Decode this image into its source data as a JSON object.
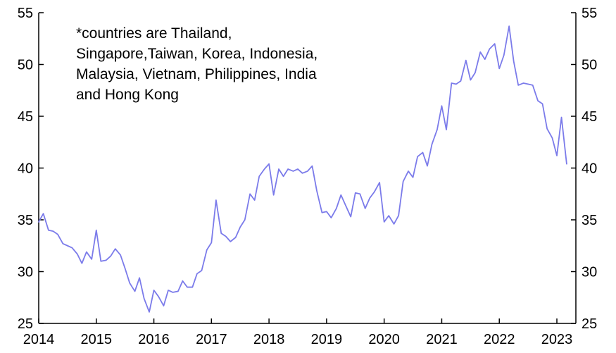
{
  "chart_data": {
    "type": "line",
    "title": "",
    "xlabel": "",
    "ylabel": "",
    "ylim": [
      25,
      55
    ],
    "xlim": [
      2014.0,
      2023.33
    ],
    "y_ticks": [
      25,
      30,
      35,
      40,
      45,
      50,
      55
    ],
    "x_ticks": [
      2014,
      2015,
      2016,
      2017,
      2018,
      2019,
      2020,
      2021,
      2022,
      2023
    ],
    "dual_y_axis": true,
    "grid": false,
    "line_color": "#7b7bea",
    "annotation": {
      "lines": [
        "*countries are Thailand,",
        "Singapore,Taiwan, Korea, Indonesia,",
        "Malaysia, Vietnam, Philippines, India",
        "and Hong Kong"
      ]
    },
    "series": [
      {
        "values": [
          [
            2014.0,
            34.8
          ],
          [
            2014.08,
            35.6
          ],
          [
            2014.17,
            34.0
          ],
          [
            2014.25,
            33.9
          ],
          [
            2014.33,
            33.6
          ],
          [
            2014.42,
            32.7
          ],
          [
            2014.5,
            32.5
          ],
          [
            2014.58,
            32.3
          ],
          [
            2014.67,
            31.7
          ],
          [
            2014.75,
            30.8
          ],
          [
            2014.83,
            31.9
          ],
          [
            2014.92,
            31.2
          ],
          [
            2015.0,
            34.0
          ],
          [
            2015.08,
            31.0
          ],
          [
            2015.17,
            31.1
          ],
          [
            2015.25,
            31.5
          ],
          [
            2015.33,
            32.2
          ],
          [
            2015.42,
            31.6
          ],
          [
            2015.5,
            30.3
          ],
          [
            2015.58,
            28.9
          ],
          [
            2015.67,
            28.1
          ],
          [
            2015.75,
            29.4
          ],
          [
            2015.83,
            27.4
          ],
          [
            2015.92,
            26.1
          ],
          [
            2016.0,
            28.2
          ],
          [
            2016.08,
            27.6
          ],
          [
            2016.17,
            26.7
          ],
          [
            2016.25,
            28.2
          ],
          [
            2016.33,
            28.0
          ],
          [
            2016.42,
            28.1
          ],
          [
            2016.5,
            29.1
          ],
          [
            2016.58,
            28.5
          ],
          [
            2016.67,
            28.5
          ],
          [
            2016.75,
            29.8
          ],
          [
            2016.83,
            30.1
          ],
          [
            2016.92,
            32.1
          ],
          [
            2017.0,
            32.8
          ],
          [
            2017.08,
            36.9
          ],
          [
            2017.17,
            33.7
          ],
          [
            2017.25,
            33.4
          ],
          [
            2017.33,
            32.9
          ],
          [
            2017.42,
            33.3
          ],
          [
            2017.5,
            34.3
          ],
          [
            2017.58,
            35.0
          ],
          [
            2017.67,
            37.5
          ],
          [
            2017.75,
            36.9
          ],
          [
            2017.83,
            39.2
          ],
          [
            2017.92,
            39.9
          ],
          [
            2018.0,
            40.4
          ],
          [
            2018.08,
            37.4
          ],
          [
            2018.17,
            39.9
          ],
          [
            2018.25,
            39.2
          ],
          [
            2018.33,
            39.9
          ],
          [
            2018.42,
            39.7
          ],
          [
            2018.5,
            39.9
          ],
          [
            2018.58,
            39.5
          ],
          [
            2018.67,
            39.7
          ],
          [
            2018.75,
            40.2
          ],
          [
            2018.83,
            37.8
          ],
          [
            2018.92,
            35.7
          ],
          [
            2019.0,
            35.8
          ],
          [
            2019.08,
            35.2
          ],
          [
            2019.17,
            36.1
          ],
          [
            2019.25,
            37.4
          ],
          [
            2019.33,
            36.4
          ],
          [
            2019.42,
            35.3
          ],
          [
            2019.5,
            37.6
          ],
          [
            2019.58,
            37.5
          ],
          [
            2019.67,
            36.1
          ],
          [
            2019.75,
            37.1
          ],
          [
            2019.83,
            37.7
          ],
          [
            2019.92,
            38.6
          ],
          [
            2020.0,
            34.8
          ],
          [
            2020.08,
            35.4
          ],
          [
            2020.17,
            34.6
          ],
          [
            2020.25,
            35.4
          ],
          [
            2020.33,
            38.7
          ],
          [
            2020.42,
            39.7
          ],
          [
            2020.5,
            39.1
          ],
          [
            2020.58,
            41.1
          ],
          [
            2020.67,
            41.5
          ],
          [
            2020.75,
            40.2
          ],
          [
            2020.83,
            42.3
          ],
          [
            2020.92,
            43.7
          ],
          [
            2021.0,
            46.0
          ],
          [
            2021.08,
            43.7
          ],
          [
            2021.17,
            48.2
          ],
          [
            2021.25,
            48.1
          ],
          [
            2021.33,
            48.4
          ],
          [
            2021.42,
            50.4
          ],
          [
            2021.5,
            48.5
          ],
          [
            2021.58,
            49.2
          ],
          [
            2021.67,
            51.2
          ],
          [
            2021.75,
            50.5
          ],
          [
            2021.83,
            51.5
          ],
          [
            2021.92,
            52.0
          ],
          [
            2022.0,
            49.6
          ],
          [
            2022.08,
            50.9
          ],
          [
            2022.17,
            53.7
          ],
          [
            2022.25,
            50.3
          ],
          [
            2022.33,
            48.0
          ],
          [
            2022.42,
            48.2
          ],
          [
            2022.5,
            48.1
          ],
          [
            2022.58,
            48.0
          ],
          [
            2022.67,
            46.5
          ],
          [
            2022.75,
            46.2
          ],
          [
            2022.83,
            43.8
          ],
          [
            2022.92,
            42.9
          ],
          [
            2023.0,
            41.2
          ],
          [
            2023.08,
            44.9
          ],
          [
            2023.17,
            40.4
          ]
        ]
      }
    ]
  }
}
